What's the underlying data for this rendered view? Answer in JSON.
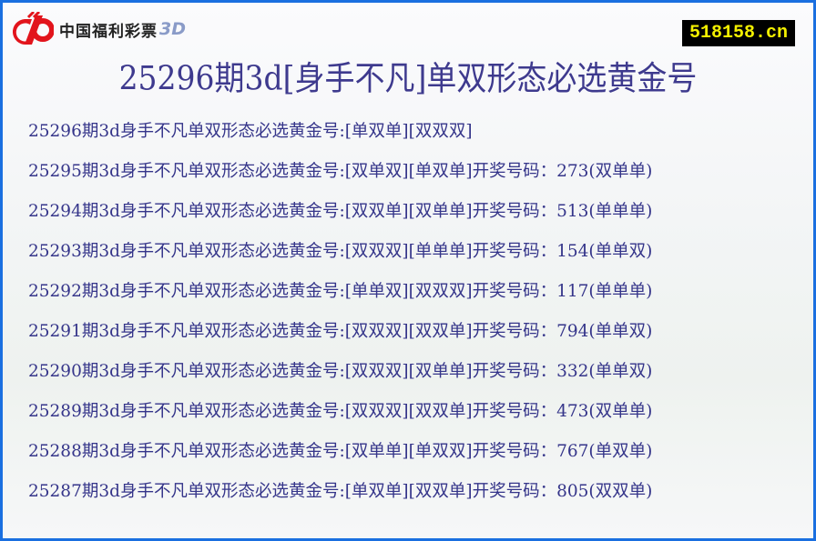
{
  "logo": {
    "text": "中国福利彩票",
    "suffix": "3D",
    "brand_color": "#e2141c"
  },
  "site_badge": "518158.cn",
  "title": "25296期3d[身手不凡]单双形态必选黄金号",
  "rows": [
    "25296期3d身手不凡单双形态必选黄金号:[单双单][双双双]",
    "25295期3d身手不凡单双形态必选黄金号:[双单双][单双单]开奖号码：273(双单单)",
    "25294期3d身手不凡单双形态必选黄金号:[双双单][双单单]开奖号码：513(单单单)",
    "25293期3d身手不凡单双形态必选黄金号:[双双双][单单单]开奖号码：154(单单双)",
    "25292期3d身手不凡单双形态必选黄金号:[单单双][双双双]开奖号码：117(单单单)",
    "25291期3d身手不凡单双形态必选黄金号:[双双双][双双单]开奖号码：794(单单双)",
    "25290期3d身手不凡单双形态必选黄金号:[双双双][双单单]开奖号码：332(单单双)",
    "25289期3d身手不凡单双形态必选黄金号:[双双双][双双单]开奖号码：473(双单单)",
    "25288期3d身手不凡单双形态必选黄金号:[双单单][单双双]开奖号码：767(单双单)",
    "25287期3d身手不凡单双形态必选黄金号:[单双单][双双单]开奖号码：805(双双单)"
  ]
}
